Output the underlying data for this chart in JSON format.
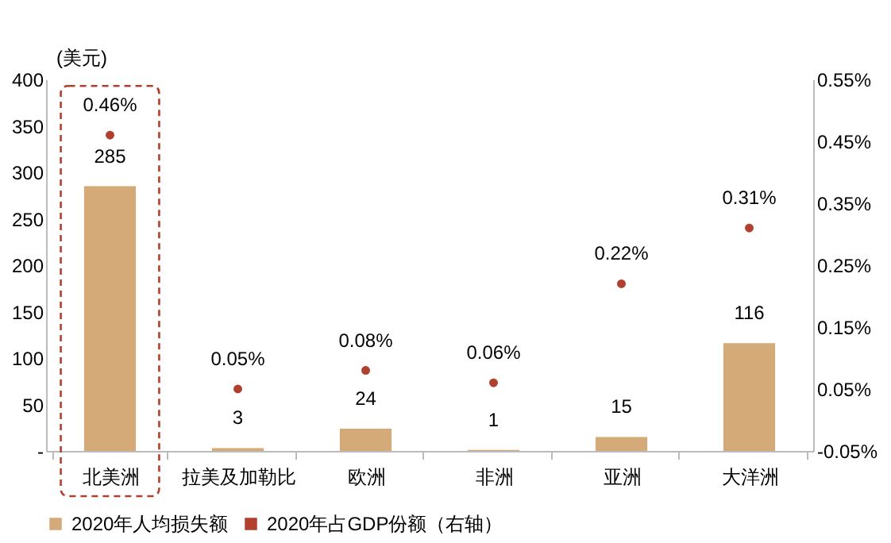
{
  "chart_data": {
    "type": "bar",
    "ylabel": "(美元)",
    "categories": [
      "北美洲",
      "拉美及加勒比",
      "欧洲",
      "非洲",
      "亚洲",
      "大洋洲"
    ],
    "series": [
      {
        "name": "2020年人均损失额",
        "color": "#d4aa78",
        "values": [
          285,
          3,
          24,
          1,
          15,
          116
        ],
        "value_labels": [
          "285",
          "3",
          "24",
          "1",
          "15",
          "116"
        ]
      },
      {
        "name": "2020年占GDP份额（右轴）",
        "type": "scatter",
        "axis": "y2",
        "color": "#b0412e",
        "marker": "circle",
        "values": [
          0.46,
          0.05,
          0.08,
          0.06,
          0.22,
          0.31
        ],
        "value_labels": [
          "0.46%",
          "0.05%",
          "0.08%",
          "0.06%",
          "0.22%",
          "0.31%"
        ]
      }
    ],
    "ylim": [
      0,
      400
    ],
    "yticks": [
      {
        "value": 0,
        "label": "-"
      },
      50,
      100,
      150,
      200,
      250,
      300,
      350,
      400
    ],
    "y2lim": [
      -0.05,
      0.55
    ],
    "y2ticks": [
      {
        "value": -0.05,
        "label": "-0.05%"
      },
      {
        "value": 0.05,
        "label": "0.05%"
      },
      {
        "value": 0.15,
        "label": "0.15%"
      },
      {
        "value": 0.25,
        "label": "0.25%"
      },
      {
        "value": 0.35,
        "label": "0.35%"
      },
      {
        "value": 0.45,
        "label": "0.45%"
      },
      {
        "value": 0.55,
        "label": "0.55%"
      }
    ],
    "grid": false,
    "legend": "bottom"
  }
}
